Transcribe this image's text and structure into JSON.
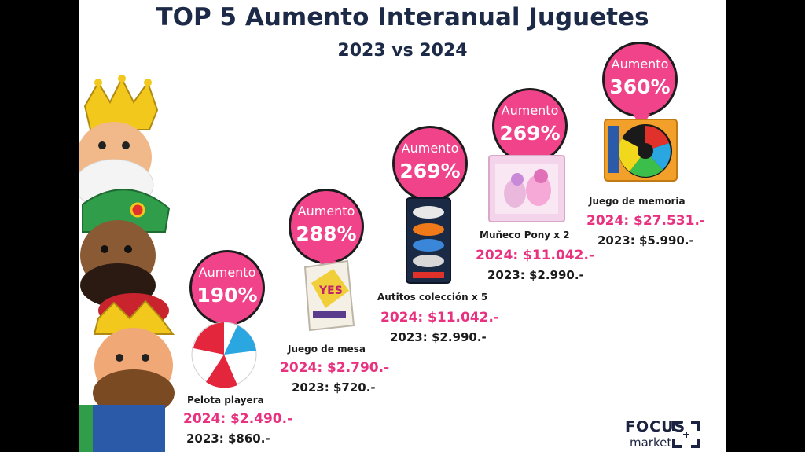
{
  "title": "TOP 5 Aumento Interanual Juguetes",
  "subtitle": "2023 vs 2024",
  "items": [
    {
      "label": "Aumento",
      "pct": "190%",
      "product": "Pelota playera",
      "p2024": "2024: $2.490.-",
      "p2023": "2023: $860.-"
    },
    {
      "label": "Aumento",
      "pct": "288%",
      "product": "Juego de mesa",
      "p2024": "2024: $2.790.-",
      "p2023": "2023: $720.-"
    },
    {
      "label": "Aumento",
      "pct": "269%",
      "product": "Autitos colección x 5",
      "p2024": "2024: $11.042.-",
      "p2023": "2023: $2.990.-"
    },
    {
      "label": "Aumento",
      "pct": "269%",
      "product": "Muñeco Pony x 2",
      "p2024": "2024: $11.042.-",
      "p2023": "2023: $2.990.-"
    },
    {
      "label": "Aumento",
      "pct": "360%",
      "product": "Juego de memoria",
      "p2024": "2024: $27.531.-",
      "p2023": "2023: $5.990.-"
    }
  ],
  "logo": {
    "focus": "FOCUS",
    "market": "market"
  },
  "colors": {
    "accent": "#f0438a",
    "price_2024": "#e8327f",
    "title": "#1d2a47",
    "frame": "#000000"
  },
  "icons": [
    "three-kings-illustration",
    "beach-ball-image",
    "board-game-box-image",
    "toy-cars-pack-image",
    "pony-doll-box-image",
    "memory-game-image"
  ]
}
